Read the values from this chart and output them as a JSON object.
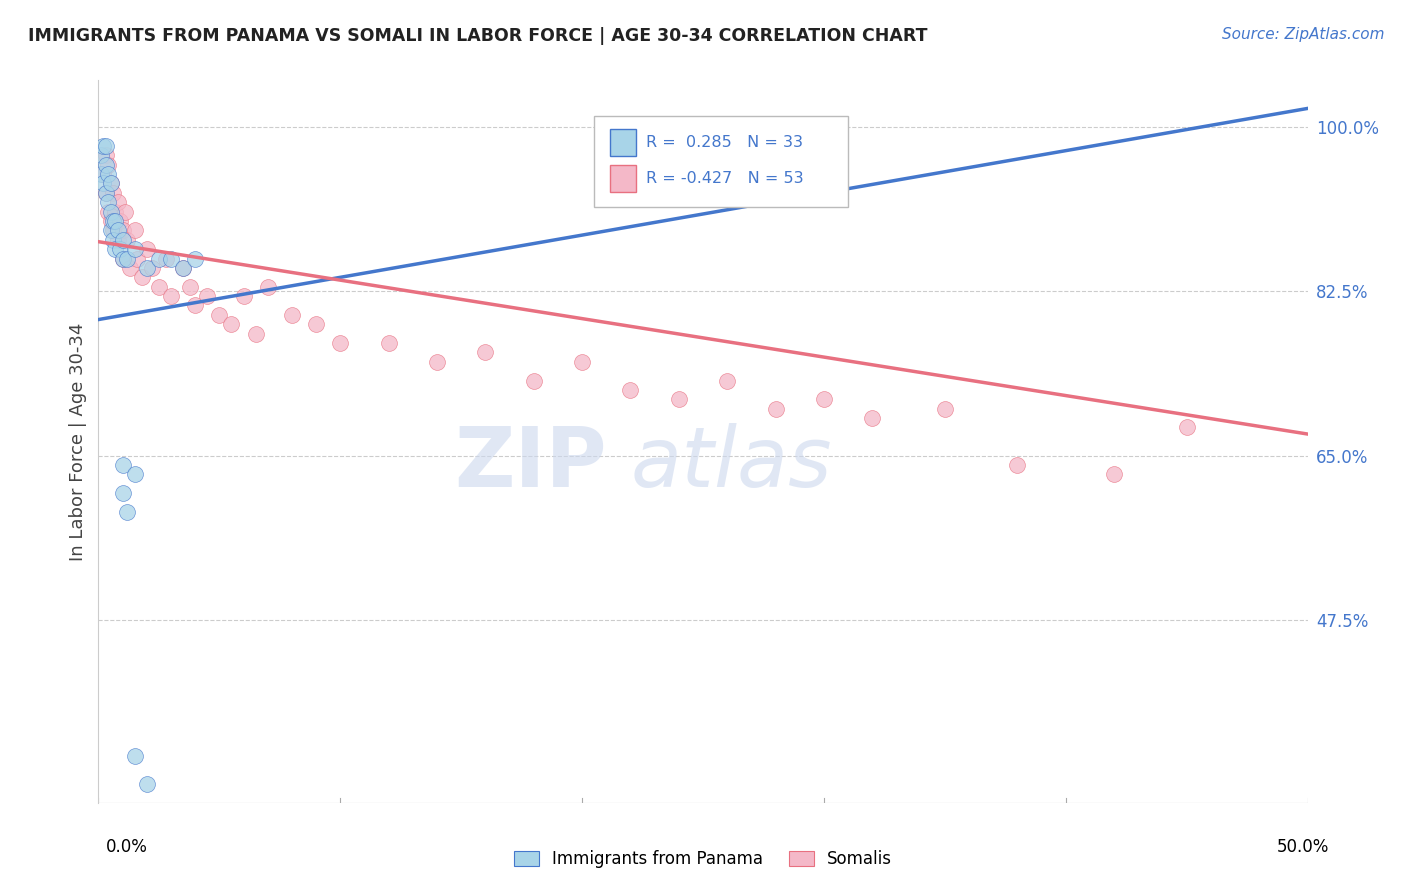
{
  "title": "IMMIGRANTS FROM PANAMA VS SOMALI IN LABOR FORCE | AGE 30-34 CORRELATION CHART",
  "source": "Source: ZipAtlas.com",
  "ylabel": "In Labor Force | Age 30-34",
  "x_min": 0.0,
  "x_max": 0.5,
  "y_min": 0.28,
  "y_max": 1.05,
  "r_panama": 0.285,
  "n_panama": 33,
  "r_somali": -0.427,
  "n_somali": 53,
  "panama_color": "#a8d4e8",
  "somali_color": "#f4b8c8",
  "trend_panama_color": "#4477cc",
  "trend_somali_color": "#e87080",
  "legend_label_panama": "Immigrants from Panama",
  "legend_label_somali": "Somalis",
  "y_ticks": [
    0.475,
    0.65,
    0.825,
    1.0
  ],
  "y_tick_labels": [
    "47.5%",
    "65.0%",
    "82.5%",
    "100.0%"
  ],
  "panama_x": [
    0.001,
    0.001,
    0.002,
    0.002,
    0.003,
    0.003,
    0.003,
    0.004,
    0.004,
    0.005,
    0.005,
    0.005,
    0.006,
    0.006,
    0.007,
    0.007,
    0.008,
    0.009,
    0.01,
    0.01,
    0.012,
    0.015,
    0.02,
    0.025,
    0.03,
    0.035,
    0.04,
    0.01,
    0.015,
    0.01,
    0.012,
    0.015,
    0.02
  ],
  "panama_y": [
    0.97,
    0.95,
    0.98,
    0.94,
    0.96,
    0.93,
    0.98,
    0.95,
    0.92,
    0.94,
    0.91,
    0.89,
    0.9,
    0.88,
    0.9,
    0.87,
    0.89,
    0.87,
    0.88,
    0.86,
    0.86,
    0.87,
    0.85,
    0.86,
    0.86,
    0.85,
    0.86,
    0.64,
    0.63,
    0.61,
    0.59,
    0.33,
    0.3
  ],
  "somali_x": [
    0.002,
    0.003,
    0.003,
    0.004,
    0.004,
    0.005,
    0.005,
    0.006,
    0.006,
    0.007,
    0.008,
    0.008,
    0.009,
    0.01,
    0.01,
    0.011,
    0.012,
    0.013,
    0.015,
    0.016,
    0.018,
    0.02,
    0.022,
    0.025,
    0.028,
    0.03,
    0.035,
    0.038,
    0.04,
    0.045,
    0.05,
    0.055,
    0.06,
    0.065,
    0.07,
    0.08,
    0.09,
    0.1,
    0.12,
    0.14,
    0.16,
    0.18,
    0.2,
    0.22,
    0.24,
    0.26,
    0.28,
    0.3,
    0.32,
    0.35,
    0.38,
    0.42,
    0.45
  ],
  "somali_y": [
    0.95,
    0.97,
    0.93,
    0.96,
    0.91,
    0.94,
    0.9,
    0.93,
    0.89,
    0.91,
    0.92,
    0.88,
    0.9,
    0.89,
    0.86,
    0.91,
    0.88,
    0.85,
    0.89,
    0.86,
    0.84,
    0.87,
    0.85,
    0.83,
    0.86,
    0.82,
    0.85,
    0.83,
    0.81,
    0.82,
    0.8,
    0.79,
    0.82,
    0.78,
    0.83,
    0.8,
    0.79,
    0.77,
    0.77,
    0.75,
    0.76,
    0.73,
    0.75,
    0.72,
    0.71,
    0.73,
    0.7,
    0.71,
    0.69,
    0.7,
    0.64,
    0.63,
    0.68
  ]
}
